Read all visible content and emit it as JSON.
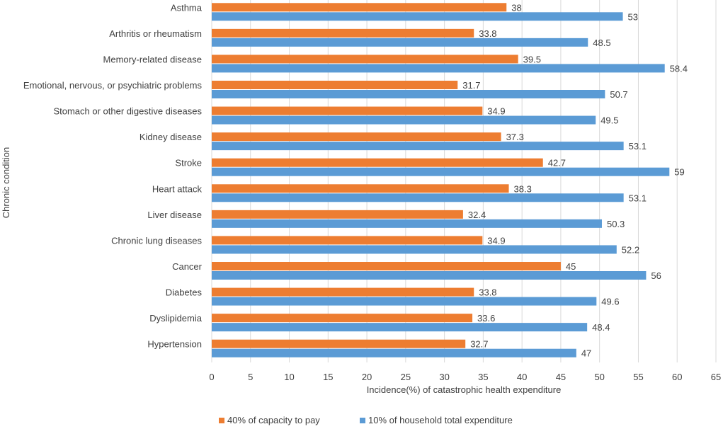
{
  "chart_data": {
    "type": "bar",
    "orientation": "horizontal",
    "title": "",
    "categories": [
      "Asthma",
      "Arthritis or rheumatism",
      "Memory-related disease",
      "Emotional, nervous, or psychiatric problems",
      "Stomach or other digestive diseases",
      "Kidney disease",
      "Stroke",
      "Heart attack",
      "Liver disease",
      "Chronic lung diseases",
      "Cancer",
      "Diabetes",
      "Dyslipidemia",
      "Hypertension"
    ],
    "series": [
      {
        "name": "40% of capacity to pay",
        "color": "#ED7D31",
        "values": [
          38,
          33.8,
          39.5,
          31.7,
          34.9,
          37.3,
          42.7,
          38.3,
          32.4,
          34.9,
          45,
          33.8,
          33.6,
          32.7
        ]
      },
      {
        "name": "10% of household total expenditure",
        "color": "#5B9BD5",
        "values": [
          53,
          48.5,
          58.4,
          50.7,
          49.5,
          53.1,
          59,
          53.1,
          50.3,
          52.2,
          56,
          49.6,
          48.4,
          47
        ]
      }
    ],
    "xlabel": "Incidence(%) of catastrophic health expenditure",
    "ylabel": "Chronic condition",
    "xlim": [
      0,
      65
    ],
    "xticks": [
      0,
      5,
      10,
      15,
      20,
      25,
      30,
      35,
      40,
      45,
      50,
      55,
      60,
      65
    ],
    "grid": true,
    "legend_position": "bottom"
  }
}
